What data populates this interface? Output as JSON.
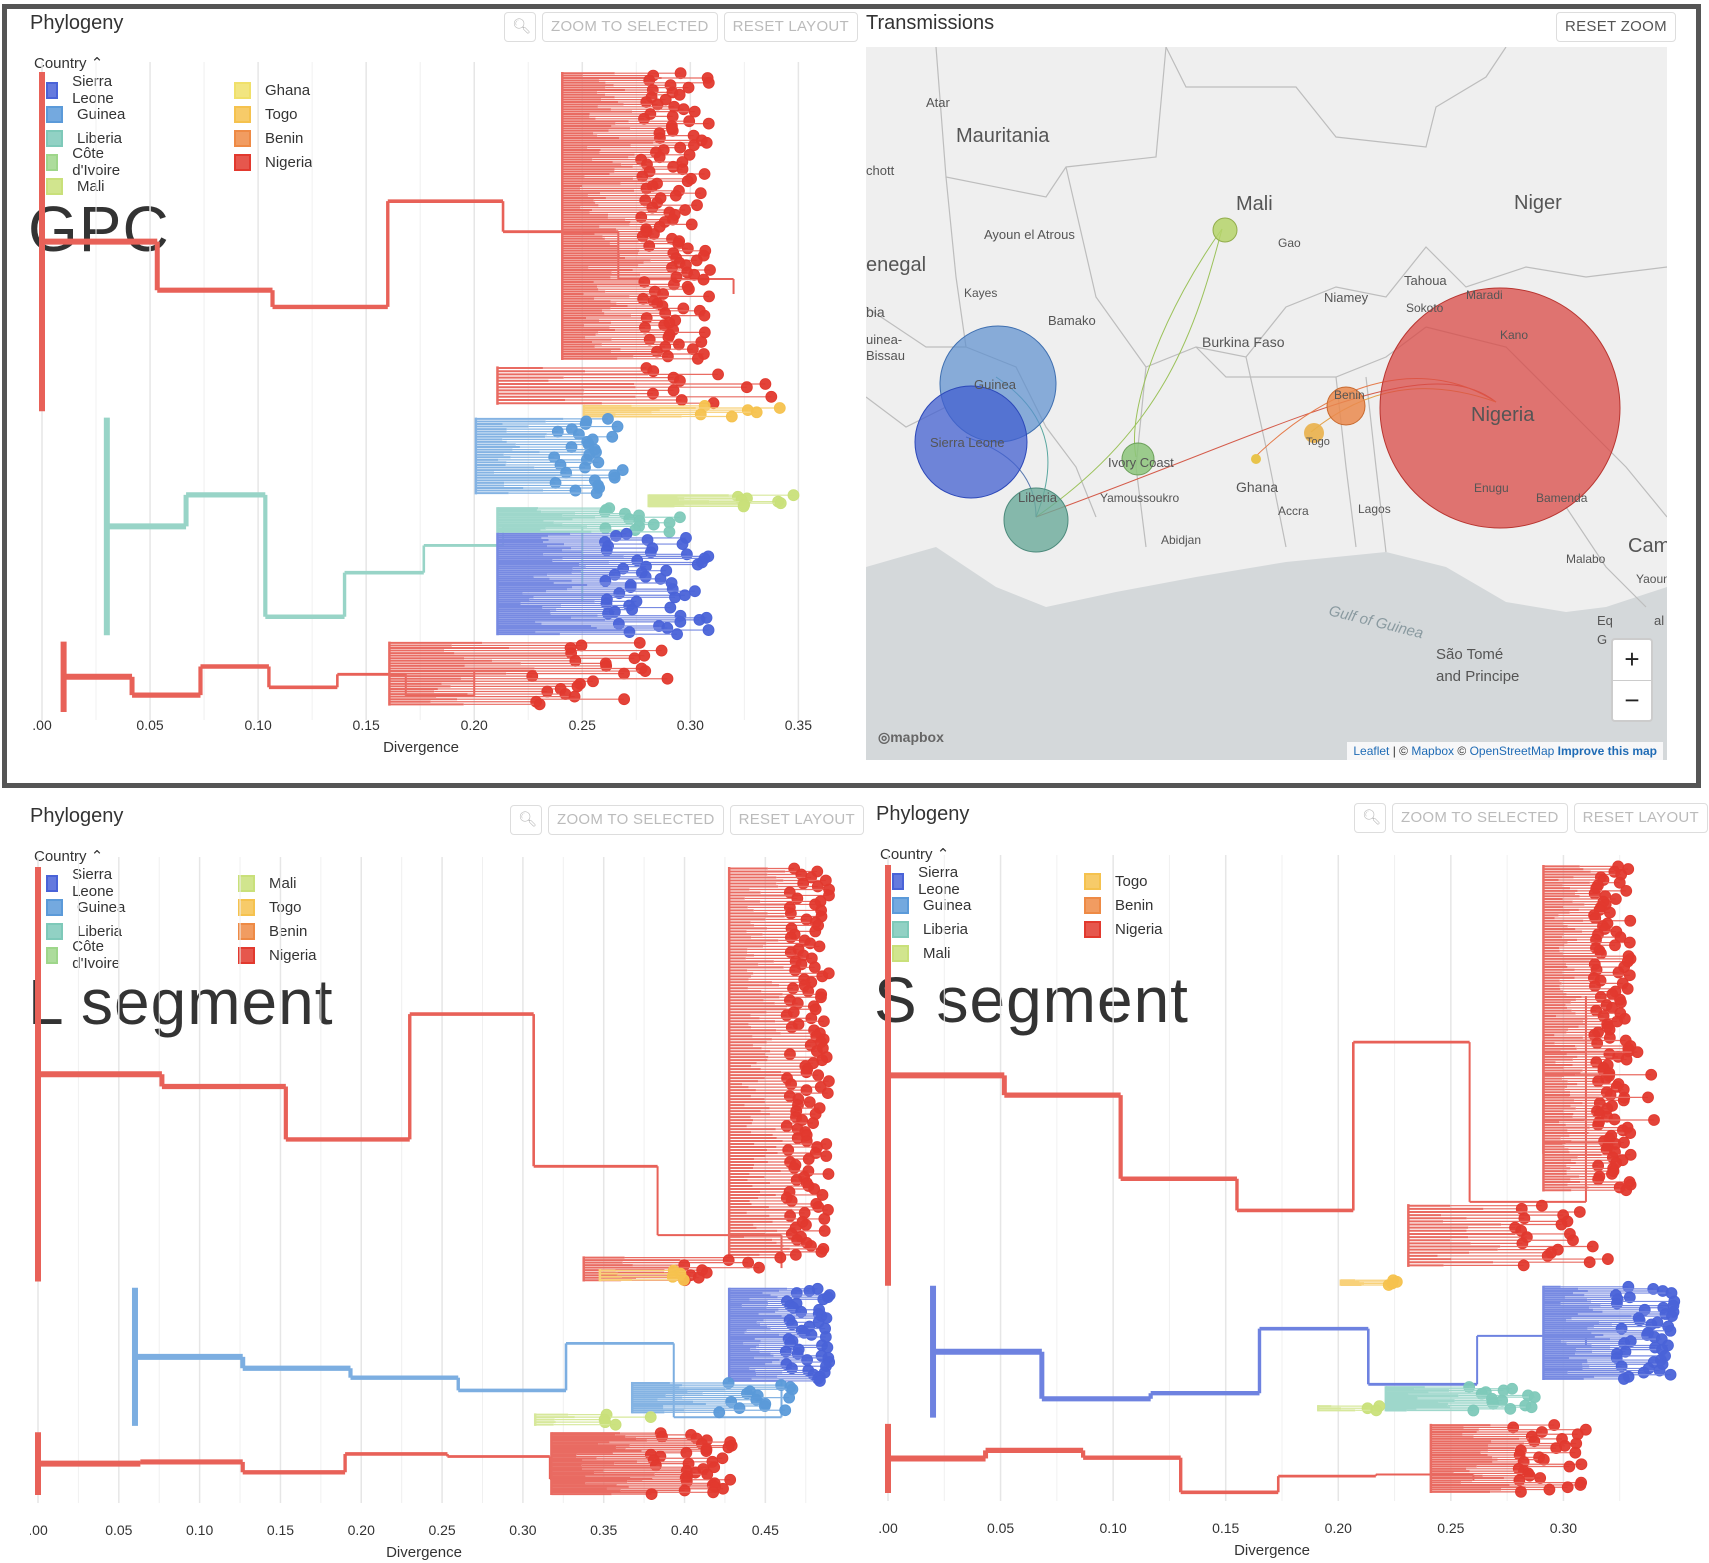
{
  "labels": {
    "zoom_selected": "ZOOM TO SELECTED",
    "reset_layout": "RESET LAYOUT",
    "reset_zoom": "RESET ZOOM",
    "country": "Country",
    "divergence": "Divergence"
  },
  "transmissions": {
    "title": "Transmissions",
    "places": [
      "Atar",
      "Mauritania",
      "chott",
      "Mali",
      "Niger",
      "Ayoun el Atrous",
      "Gao",
      "enegal",
      "Kayes",
      "bia",
      "Bamako",
      "Tahoua",
      "Niamey",
      "Sokoto",
      "Maradi",
      "uinea-",
      "Bissau",
      "Burkina Faso",
      "Kano",
      "Guinea",
      "Benin",
      "Nigeria",
      "Sierra Leone",
      "Togo",
      "Ivory Coast",
      "Ghana",
      "Liberia",
      "Yamoussoukro",
      "Accra",
      "Lagos",
      "Enugu",
      "Bamenda",
      "Abidjan",
      "Cam",
      "Malabo",
      "Yaoun",
      "Gulf of Guinea",
      "Eq",
      "G",
      "al",
      "São Tomé",
      "and Principe"
    ],
    "mapbox": "mapbox",
    "zoom_in": "+",
    "zoom_out": "−",
    "attribution": {
      "leaflet": "Leaflet",
      "sep": " | © ",
      "mapbox": "Mapbox",
      "osm_sep": " © ",
      "osm": "OpenStreetMap",
      "improve": "Improve this map"
    }
  },
  "colors": {
    "Sierra Leone": "#4a63d8",
    "Guinea": "#5b9ad9",
    "Liberia": "#7ec9b9",
    "Côte d'Ivoire": "#9ed68a",
    "Mali": "#c9e07a",
    "Ghana": "#f0e06a",
    "Togo": "#f5c24e",
    "Benin": "#ee8a45",
    "Nigeria": "#e2392e"
  },
  "chart_data": [
    {
      "type": "tree",
      "title": "Phylogeny",
      "annotation": "GPC",
      "legend_title": "Country",
      "legend": [
        [
          "Sierra Leone",
          "Guinea",
          "Liberia",
          "Côte d'Ivoire",
          "Mali"
        ],
        [
          "Ghana",
          "Togo",
          "Benin",
          "Nigeria"
        ]
      ],
      "xlabel": "Divergence",
      "ticks": [
        ".00",
        "0.05",
        "0.10",
        "0.15",
        "0.20",
        "0.25",
        "0.30",
        "0.35"
      ],
      "xlim": [
        0,
        0.36
      ],
      "clades": [
        {
          "country": "Nigeria",
          "x": [
            0.25,
            0.31
          ],
          "y": [
            0.0,
            0.45
          ],
          "n": 120
        },
        {
          "country": "Nigeria",
          "x": [
            0.22,
            0.34
          ],
          "y": [
            0.46,
            0.52
          ],
          "n": 12
        },
        {
          "country": "Togo",
          "x": [
            0.26,
            0.35
          ],
          "y": [
            0.52,
            0.54
          ],
          "n": 6
        },
        {
          "country": "Guinea",
          "x": [
            0.21,
            0.27
          ],
          "y": [
            0.54,
            0.66
          ],
          "n": 30
        },
        {
          "country": "Mali",
          "x": [
            0.29,
            0.36
          ],
          "y": [
            0.66,
            0.68
          ],
          "n": 8
        },
        {
          "country": "Liberia",
          "x": [
            0.22,
            0.3
          ],
          "y": [
            0.68,
            0.72
          ],
          "n": 14
        },
        {
          "country": "Sierra Leone",
          "x": [
            0.22,
            0.31
          ],
          "y": [
            0.72,
            0.88
          ],
          "n": 50
        },
        {
          "country": "Nigeria",
          "x": [
            0.17,
            0.29
          ],
          "y": [
            0.89,
            0.99
          ],
          "n": 25
        }
      ],
      "backbone": [
        {
          "country": "Nigeria",
          "x": [
            0.0,
            0.32
          ],
          "y": [
            0.0,
            0.53
          ]
        },
        {
          "country": "Liberia",
          "x": [
            0.03,
            0.25
          ],
          "y": [
            0.54,
            0.88
          ]
        },
        {
          "country": "Nigeria",
          "x": [
            0.01,
            0.2
          ],
          "y": [
            0.89,
            1.0
          ]
        }
      ]
    },
    {
      "type": "tree",
      "title": "Phylogeny",
      "annotation": "L segment",
      "legend_title": "Country",
      "legend": [
        [
          "Sierra Leone",
          "Guinea",
          "Liberia",
          "Côte d'Ivoire"
        ],
        [
          "Mali",
          "Togo",
          "Benin",
          "Nigeria"
        ]
      ],
      "xlabel": "Divergence",
      "ticks": [
        ".00",
        "0.05",
        "0.10",
        "0.15",
        "0.20",
        "0.25",
        "0.30",
        "0.35",
        "0.40",
        "0.45"
      ],
      "xlim": [
        0,
        0.49
      ],
      "clades": [
        {
          "country": "Nigeria",
          "x": [
            0.44,
            0.49
          ],
          "y": [
            0.0,
            0.62
          ],
          "n": 130
        },
        {
          "country": "Nigeria",
          "x": [
            0.35,
            0.46
          ],
          "y": [
            0.62,
            0.66
          ],
          "n": 10
        },
        {
          "country": "Togo",
          "x": [
            0.36,
            0.4
          ],
          "y": [
            0.64,
            0.66
          ],
          "n": 4
        },
        {
          "country": "Sierra Leone",
          "x": [
            0.44,
            0.49
          ],
          "y": [
            0.67,
            0.82
          ],
          "n": 45
        },
        {
          "country": "Guinea",
          "x": [
            0.38,
            0.47
          ],
          "y": [
            0.82,
            0.87
          ],
          "n": 15
        },
        {
          "country": "Mali",
          "x": [
            0.32,
            0.38
          ],
          "y": [
            0.87,
            0.89
          ],
          "n": 5
        },
        {
          "country": "Nigeria",
          "x": [
            0.33,
            0.43
          ],
          "y": [
            0.9,
            1.0
          ],
          "n": 35
        }
      ],
      "backbone": [
        {
          "country": "Nigeria",
          "x": [
            0.0,
            0.46
          ],
          "y": [
            0.0,
            0.66
          ]
        },
        {
          "country": "Guinea",
          "x": [
            0.06,
            0.46
          ],
          "y": [
            0.67,
            0.89
          ]
        },
        {
          "country": "Nigeria",
          "x": [
            0.0,
            0.38
          ],
          "y": [
            0.9,
            1.0
          ]
        }
      ]
    },
    {
      "type": "tree",
      "title": "Phylogeny",
      "annotation": "S segment",
      "legend_title": "Country",
      "legend": [
        [
          "Sierra Leone",
          "Guinea",
          "Liberia",
          "Mali"
        ],
        [
          "Togo",
          "Benin",
          "Nigeria"
        ]
      ],
      "xlabel": "Divergence",
      "ticks": [
        ".00",
        "0.05",
        "0.10",
        "0.15",
        "0.20",
        "0.25",
        "0.30"
      ],
      "xlim": [
        0,
        0.35
      ],
      "clades": [
        {
          "country": "Nigeria",
          "x": [
            0.3,
            0.33
          ],
          "y": [
            0.0,
            0.52
          ],
          "n": 120
        },
        {
          "country": "Nigeria",
          "x": [
            0.3,
            0.35
          ],
          "y": [
            0.28,
            0.46
          ],
          "n": 5
        },
        {
          "country": "Nigeria",
          "x": [
            0.24,
            0.32
          ],
          "y": [
            0.54,
            0.64
          ],
          "n": 20
        },
        {
          "country": "Togo",
          "x": [
            0.21,
            0.23
          ],
          "y": [
            0.66,
            0.67
          ],
          "n": 4
        },
        {
          "country": "Sierra Leone",
          "x": [
            0.3,
            0.35
          ],
          "y": [
            0.67,
            0.82
          ],
          "n": 45
        },
        {
          "country": "Liberia",
          "x": [
            0.23,
            0.29
          ],
          "y": [
            0.83,
            0.87
          ],
          "n": 15
        },
        {
          "country": "Mali",
          "x": [
            0.2,
            0.22
          ],
          "y": [
            0.86,
            0.87
          ],
          "n": 3
        },
        {
          "country": "Nigeria",
          "x": [
            0.25,
            0.31
          ],
          "y": [
            0.89,
            1.0
          ],
          "n": 30
        }
      ],
      "backbone": [
        {
          "country": "Nigeria",
          "x": [
            0.0,
            0.31
          ],
          "y": [
            0.0,
            0.67
          ]
        },
        {
          "country": "Sierra Leone",
          "x": [
            0.02,
            0.31
          ],
          "y": [
            0.67,
            0.88
          ]
        },
        {
          "country": "Nigeria",
          "x": [
            0.0,
            0.26
          ],
          "y": [
            0.89,
            1.0
          ]
        }
      ]
    }
  ]
}
